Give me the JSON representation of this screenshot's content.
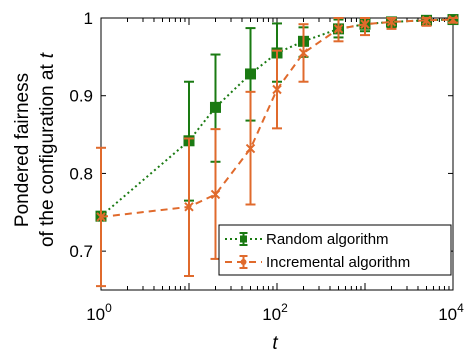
{
  "chart_data": {
    "type": "line",
    "title": "",
    "xlabel": "t",
    "ylabel_line1": "Pondered fairness",
    "ylabel_line2": "of the configuration at",
    "ylabel_var": "t",
    "xscale": "log",
    "xlim": [
      1,
      10000
    ],
    "ylim": [
      0.65,
      1.0
    ],
    "x_ticks": [
      {
        "value": 1,
        "base": "10",
        "exp": "0"
      },
      {
        "value": 100,
        "base": "10",
        "exp": "2"
      },
      {
        "value": 10000,
        "base": "10",
        "exp": "4"
      }
    ],
    "y_ticks": [
      {
        "value": 0.7,
        "label": "0.7"
      },
      {
        "value": 0.8,
        "label": "0.8"
      },
      {
        "value": 0.9,
        "label": "0.9"
      },
      {
        "value": 1.0,
        "label": "1"
      }
    ],
    "grid": false,
    "legend_position": "bottom-right",
    "series": [
      {
        "name": "Random algorithm",
        "color": "#1a7a12",
        "line_style": "dotted",
        "marker": "square",
        "x": [
          1,
          10,
          20,
          50,
          100,
          200,
          500,
          1000,
          2000,
          5000,
          10000
        ],
        "y": [
          0.745,
          0.842,
          0.885,
          0.928,
          0.955,
          0.97,
          0.986,
          0.992,
          0.995,
          0.997,
          0.998
        ],
        "y_err_low": [
          0.745,
          0.765,
          0.815,
          0.868,
          0.918,
          0.95,
          0.975,
          0.983,
          0.988,
          0.992,
          0.994
        ],
        "y_err_high": [
          0.745,
          0.918,
          0.953,
          0.987,
          0.993,
          0.988,
          0.998,
          1.0,
          1.0,
          1.0,
          1.0
        ]
      },
      {
        "name": "Incremental algorithm",
        "color": "#e06a2c",
        "line_style": "dashed",
        "marker": "x",
        "x": [
          1,
          10,
          20,
          50,
          100,
          200,
          500,
          1000,
          2000,
          5000,
          10000
        ],
        "y": [
          0.744,
          0.757,
          0.773,
          0.832,
          0.908,
          0.955,
          0.986,
          0.992,
          0.995,
          0.997,
          0.998
        ],
        "y_err_low": [
          0.655,
          0.668,
          0.69,
          0.76,
          0.858,
          0.918,
          0.97,
          0.978,
          0.986,
          0.99,
          0.994
        ],
        "y_err_high": [
          0.833,
          0.845,
          0.857,
          0.905,
          0.958,
          0.992,
          1.0,
          1.0,
          1.0,
          1.0,
          1.0
        ]
      }
    ]
  }
}
